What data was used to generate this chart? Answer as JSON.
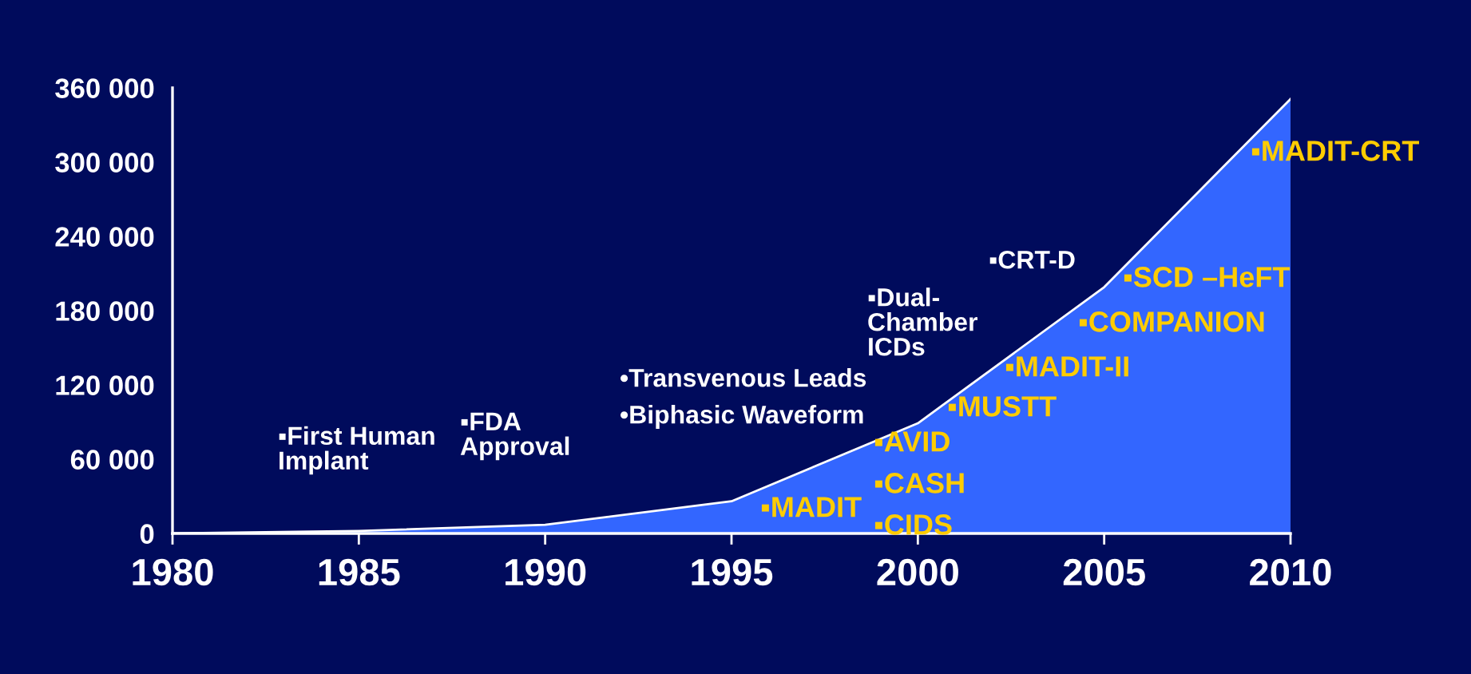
{
  "chart_data": {
    "type": "area",
    "x": [
      1980,
      1985,
      1990,
      1995,
      2000,
      2005,
      2010
    ],
    "series": [
      {
        "color": "#3366ff",
        "values": [
          0,
          2000,
          7000,
          26000,
          89000,
          199000,
          351000
        ]
      }
    ],
    "xlim": [
      1980,
      2010
    ],
    "xticks": [
      1980,
      1985,
      1990,
      1995,
      2000,
      2005,
      2010
    ],
    "ylim": [
      0,
      360000
    ],
    "yticks": [
      0,
      {
        "value": 60000,
        "label": "60 000"
      },
      {
        "value": 120000,
        "label": "120 000"
      },
      {
        "value": 180000,
        "label": "180 000"
      },
      {
        "value": 240000,
        "label": "240 000"
      },
      {
        "value": 300000,
        "label": "300 000"
      },
      {
        "value": 360000,
        "label": "360 000"
      }
    ],
    "annotations": [
      "▪First Human\nImplant",
      "▪FDA\nApproval",
      "•Transvenous Leads",
      "•Biphasic Waveform",
      "▪MADIT",
      "▪Dual-\nChamber\nICDs",
      "▪AVID",
      "▪CASH",
      "▪CIDS",
      "▪MUSTT",
      "▪CRT-D",
      "▪MADIT-II",
      "▪COMPANION",
      "▪SCD –HeFT",
      "▪MADIT-CRT"
    ]
  }
}
